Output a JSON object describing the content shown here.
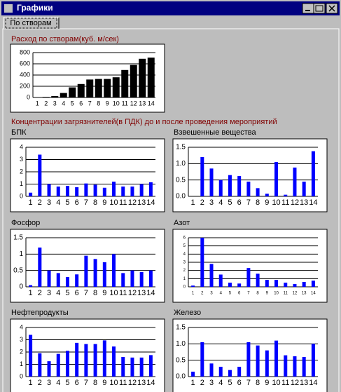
{
  "window": {
    "title": "Графики",
    "tab": "По створам",
    "section_label": "Концентрации загрязнителей(в ПДК) до и после проведения мероприятий"
  },
  "chart_data": [
    {
      "type": "bar",
      "title": "Расход по створам(куб. м/сек)",
      "color": "#000000",
      "grid": true,
      "categories": [
        "1",
        "2",
        "3",
        "4",
        "5",
        "6",
        "7",
        "8",
        "9",
        "10",
        "11",
        "12",
        "13",
        "14"
      ],
      "values": [
        5,
        10,
        25,
        80,
        180,
        240,
        320,
        330,
        330,
        360,
        490,
        580,
        690,
        710
      ],
      "ylim": [
        0,
        800
      ],
      "yticks": [
        0,
        200,
        400,
        600,
        800
      ]
    },
    {
      "type": "bar",
      "title": "БПК",
      "color": "#0000ff",
      "grid": true,
      "categories": [
        "1",
        "2",
        "3",
        "4",
        "5",
        "6",
        "7",
        "8",
        "9",
        "10",
        "11",
        "12",
        "13",
        "14"
      ],
      "values": [
        0.3,
        3.4,
        1.0,
        0.8,
        0.85,
        0.75,
        1.05,
        0.95,
        0.7,
        1.2,
        0.8,
        0.8,
        1.0,
        1.15
      ],
      "ylim": [
        0,
        4
      ],
      "yticks": [
        0,
        1,
        2,
        3,
        4
      ]
    },
    {
      "type": "bar",
      "title": "Взвешенные вещества",
      "color": "#0000ff",
      "grid": true,
      "categories": [
        "1",
        "2",
        "3",
        "4",
        "5",
        "6",
        "7",
        "8",
        "9",
        "10",
        "11",
        "12",
        "13",
        "14"
      ],
      "values": [
        0,
        1.2,
        0.85,
        0.5,
        0.65,
        0.62,
        0.45,
        0.25,
        0.08,
        1.05,
        0.05,
        0.88,
        0.45,
        1.38
      ],
      "ylim": [
        0,
        1.5
      ],
      "yticks": [
        {
          "value": 0,
          "label": "0.0"
        },
        0.5,
        {
          "value": 1,
          "label": "1.0"
        },
        1.5
      ]
    },
    {
      "type": "bar",
      "title": "Фосфор",
      "color": "#0000ff",
      "grid": true,
      "categories": [
        "1",
        "2",
        "3",
        "4",
        "5",
        "6",
        "7",
        "8",
        "9",
        "10",
        "11",
        "12",
        "13",
        "14"
      ],
      "values": [
        0.05,
        1.2,
        0.5,
        0.42,
        0.3,
        0.38,
        0.95,
        0.85,
        0.75,
        1.0,
        0.42,
        0.5,
        0.45,
        0.5
      ],
      "ylim": [
        0,
        1.5
      ],
      "yticks": [
        0,
        0.5,
        1,
        1.5
      ]
    },
    {
      "type": "bar",
      "title": "Азот",
      "color": "#0000ff",
      "grid": true,
      "categories": [
        "1",
        "2",
        "3",
        "4",
        "5",
        "6",
        "7",
        "8",
        "9",
        "10",
        "11",
        "12",
        "13",
        "14"
      ],
      "values": [
        0.15,
        6,
        2.8,
        1.5,
        0.5,
        0.4,
        2.3,
        1.6,
        0.85,
        0.85,
        0.5,
        0.35,
        0.6,
        0.75
      ],
      "ylim": [
        0,
        6
      ],
      "yticks": [
        0,
        1,
        2,
        3,
        4,
        5,
        6
      ]
    },
    {
      "type": "bar",
      "title": "Нефтепродукты",
      "color": "#0000ff",
      "grid": true,
      "categories": [
        "1",
        "2",
        "3",
        "4",
        "5",
        "6",
        "7",
        "8",
        "9",
        "10",
        "11",
        "12",
        "13",
        "14"
      ],
      "values": [
        3.4,
        1.9,
        1.25,
        1.85,
        2.1,
        2.75,
        2.65,
        2.65,
        2.95,
        2.45,
        1.6,
        1.55,
        1.55,
        1.75
      ],
      "ylim": [
        0,
        4
      ],
      "yticks": [
        0,
        1,
        2,
        3,
        4
      ]
    },
    {
      "type": "bar",
      "title": "Железо",
      "color": "#0000ff",
      "grid": true,
      "categories": [
        "1",
        "2",
        "3",
        "4",
        "5",
        "6",
        "7",
        "8",
        "9",
        "10",
        "11",
        "12",
        "13",
        "14"
      ],
      "values": [
        0.15,
        1.05,
        0.4,
        0.3,
        0.2,
        0.3,
        1.05,
        0.95,
        0.8,
        1.1,
        0.65,
        0.62,
        0.6,
        1.0
      ],
      "ylim": [
        0,
        1.5
      ],
      "yticks": [
        {
          "value": 0,
          "label": "0.0"
        },
        0.5,
        {
          "value": 1,
          "label": "1.0"
        },
        1.5
      ]
    }
  ]
}
